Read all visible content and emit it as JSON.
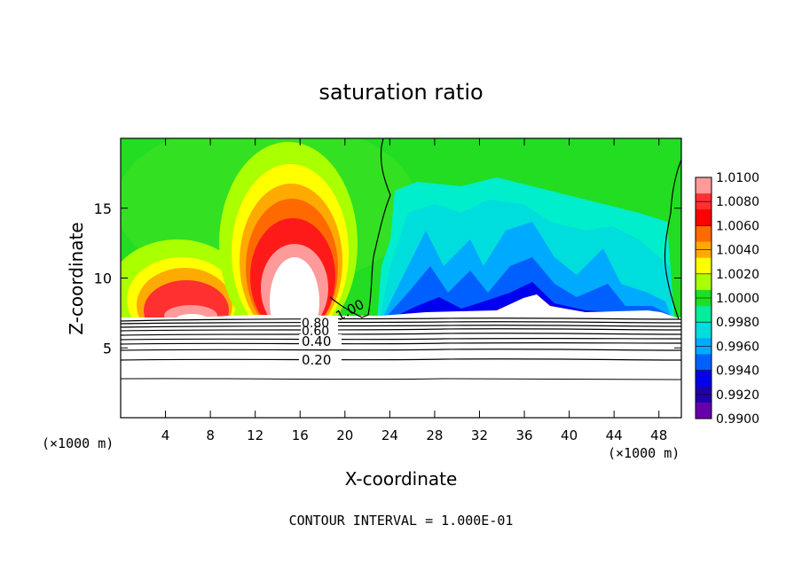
{
  "chart_data": {
    "type": "heatmap",
    "title": "saturation ratio",
    "xlabel": "X-coordinate",
    "ylabel": "Z-coordinate",
    "x_unit_label": "(×1000 m)",
    "z_unit_label": "(×1000 m)",
    "footer": "CONTOUR INTERVAL = 1.000E-01",
    "xlim": [
      0,
      50
    ],
    "ylim": [
      0,
      20
    ],
    "x_ticks": [
      4,
      8,
      12,
      16,
      20,
      24,
      28,
      32,
      36,
      40,
      44,
      48
    ],
    "x_tick_labels": [
      "4",
      "8",
      "12",
      "16",
      "20",
      "24",
      "28",
      "32",
      "36",
      "40",
      "44",
      "48"
    ],
    "y_ticks": [
      5,
      10,
      15
    ],
    "y_tick_labels": [
      "5",
      "10",
      "15"
    ],
    "colorbar": {
      "range": [
        0.99,
        1.01
      ],
      "tick_values": [
        1.01,
        1.008,
        1.006,
        1.004,
        1.002,
        1.0,
        0.998,
        0.996,
        0.994,
        0.992,
        0.99
      ],
      "tick_labels": [
        "1.0100",
        "1.0080",
        "1.0060",
        "1.0040",
        "1.0020",
        "1.0000",
        "0.9980",
        "0.9960",
        "0.9940",
        "0.9920",
        "0.9900"
      ],
      "colors": [
        "#ff9a9a",
        "#ff3030",
        "#ff0000",
        "#ff6a00",
        "#ffaa00",
        "#ffff00",
        "#aaff00",
        "#22dd22",
        "#00ee99",
        "#00dddd",
        "#00aaff",
        "#0060ff",
        "#0000ee",
        "#2000aa",
        "#6600aa"
      ]
    },
    "contour_labels": [
      {
        "text": "0.20",
        "x": 17.3,
        "z": 4.3
      },
      {
        "text": "0.40",
        "x": 17.3,
        "z": 5.6
      },
      {
        "text": "0.60",
        "x": 17.3,
        "z": 6.3
      },
      {
        "text": "0.80",
        "x": 17.3,
        "z": 6.8
      },
      {
        "text": "1.00",
        "x": 20.0,
        "z": 7.7
      }
    ],
    "surface_z": 7.2,
    "field_features": [
      {
        "region": "left lobe",
        "x_range": [
          0,
          10.5
        ],
        "peak_x": 5.8,
        "peak_z": 11.3,
        "max_value": 1.01
      },
      {
        "region": "central dome",
        "x_range": [
          10.5,
          20.5
        ],
        "peak_x": 15.3,
        "peak_z": 14.5,
        "max_value": 1.01
      },
      {
        "region": "subsaturated column",
        "x_range": [
          22,
          49.5
        ],
        "min_value": 0.99
      },
      {
        "region": "upper layer",
        "value": 1.0
      }
    ]
  }
}
